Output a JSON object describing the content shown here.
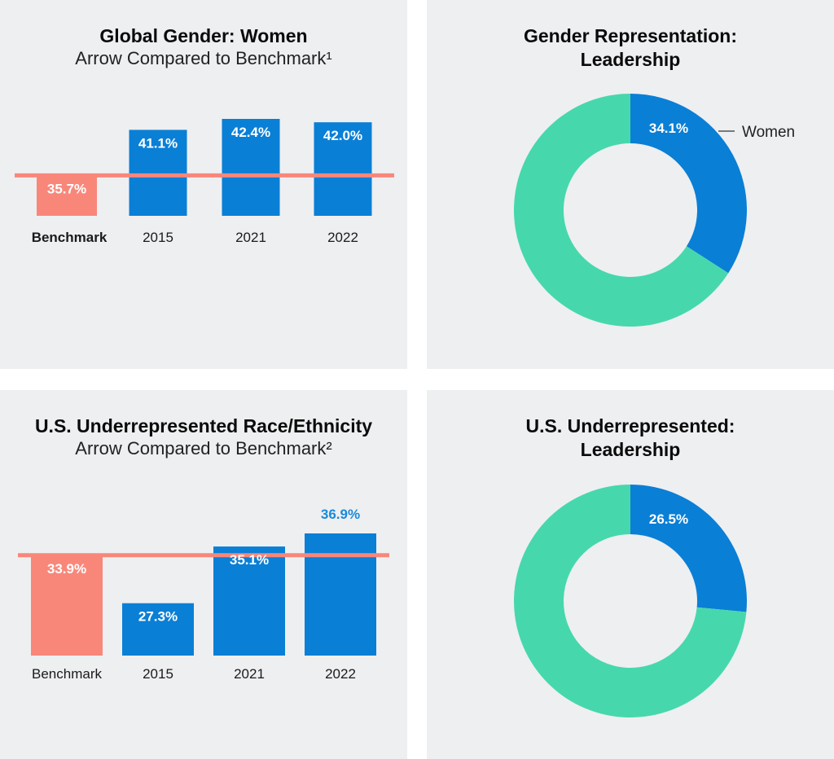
{
  "colors": {
    "panel_bg": "#eeeff1",
    "bar_blue": "#0a7fd6",
    "benchmark": "#f8877a",
    "donut_green": "#46d8ac",
    "value_light": "#ffffff",
    "value_outside": "#1a8ad9"
  },
  "chart_data": [
    {
      "type": "bar",
      "title": "Global Gender: Women",
      "subtitle": "Arrow Compared to Benchmark¹",
      "categories": [
        "Benchmark",
        "2015",
        "2021",
        "2022"
      ],
      "values": [
        35.7,
        41.1,
        42.4,
        42.0
      ],
      "value_labels": [
        "35.7%",
        "41.1%",
        "42.4%",
        "42.0%"
      ],
      "benchmark_line": 35.7,
      "bold_categories": [
        "Benchmark"
      ]
    },
    {
      "type": "pie",
      "style": "donut",
      "title_lines": [
        "Gender Representation:",
        "Leadership"
      ],
      "slices": [
        {
          "label": "Women",
          "value": 34.1,
          "value_label": "34.1%",
          "color": "#0a7fd6"
        },
        {
          "label": "",
          "value": 65.9,
          "value_label": "",
          "color": "#46d8ac"
        }
      ],
      "legend_label": "Women"
    },
    {
      "type": "bar",
      "title": "U.S. Underrepresented Race/Ethnicity",
      "subtitle": "Arrow Compared to Benchmark²",
      "categories": [
        "Benchmark",
        "2015",
        "2021",
        "2022"
      ],
      "values": [
        33.9,
        27.3,
        35.1,
        36.9
      ],
      "value_labels": [
        "33.9%",
        "27.3%",
        "35.1%",
        "36.9%"
      ],
      "benchmark_line": 33.9
    },
    {
      "type": "pie",
      "style": "donut",
      "title_lines": [
        "U.S. Underrepresented:",
        "Leadership"
      ],
      "slices": [
        {
          "label": "",
          "value": 26.5,
          "value_label": "26.5%",
          "color": "#0a7fd6"
        },
        {
          "label": "",
          "value": 73.5,
          "value_label": "",
          "color": "#46d8ac"
        }
      ]
    }
  ]
}
